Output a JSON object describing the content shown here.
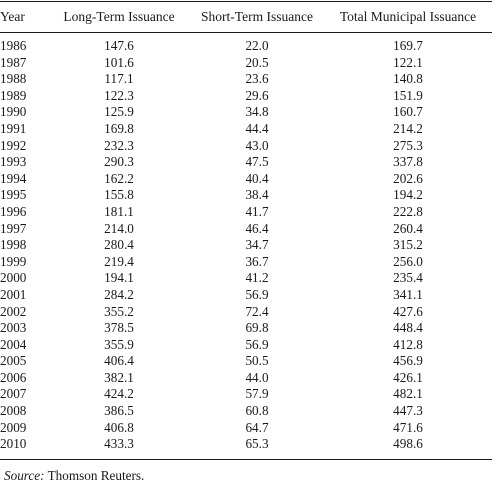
{
  "table": {
    "headers": {
      "year": "Year",
      "long_term": "Long-Term Issuance",
      "short_term": "Short-Term Issuance",
      "total": "Total Municipal Issuance"
    },
    "rows": [
      {
        "year": "1986",
        "long_term": "147.6",
        "short_term": "22.0",
        "total": "169.7"
      },
      {
        "year": "1987",
        "long_term": "101.6",
        "short_term": "20.5",
        "total": "122.1"
      },
      {
        "year": "1988",
        "long_term": "117.1",
        "short_term": "23.6",
        "total": "140.8"
      },
      {
        "year": "1989",
        "long_term": "122.3",
        "short_term": "29.6",
        "total": "151.9"
      },
      {
        "year": "1990",
        "long_term": "125.9",
        "short_term": "34.8",
        "total": "160.7"
      },
      {
        "year": "1991",
        "long_term": "169.8",
        "short_term": "44.4",
        "total": "214.2"
      },
      {
        "year": "1992",
        "long_term": "232.3",
        "short_term": "43.0",
        "total": "275.3"
      },
      {
        "year": "1993",
        "long_term": "290.3",
        "short_term": "47.5",
        "total": "337.8"
      },
      {
        "year": "1994",
        "long_term": "162.2",
        "short_term": "40.4",
        "total": "202.6"
      },
      {
        "year": "1995",
        "long_term": "155.8",
        "short_term": "38.4",
        "total": "194.2"
      },
      {
        "year": "1996",
        "long_term": "181.1",
        "short_term": "41.7",
        "total": "222.8"
      },
      {
        "year": "1997",
        "long_term": "214.0",
        "short_term": "46.4",
        "total": "260.4"
      },
      {
        "year": "1998",
        "long_term": "280.4",
        "short_term": "34.7",
        "total": "315.2"
      },
      {
        "year": "1999",
        "long_term": "219.4",
        "short_term": "36.7",
        "total": "256.0"
      },
      {
        "year": "2000",
        "long_term": "194.1",
        "short_term": "41.2",
        "total": "235.4"
      },
      {
        "year": "2001",
        "long_term": "284.2",
        "short_term": "56.9",
        "total": "341.1"
      },
      {
        "year": "2002",
        "long_term": "355.2",
        "short_term": "72.4",
        "total": "427.6"
      },
      {
        "year": "2003",
        "long_term": "378.5",
        "short_term": "69.8",
        "total": "448.4"
      },
      {
        "year": "2004",
        "long_term": "355.9",
        "short_term": "56.9",
        "total": "412.8"
      },
      {
        "year": "2005",
        "long_term": "406.4",
        "short_term": "50.5",
        "total": "456.9"
      },
      {
        "year": "2006",
        "long_term": "382.1",
        "short_term": "44.0",
        "total": "426.1"
      },
      {
        "year": "2007",
        "long_term": "424.2",
        "short_term": "57.9",
        "total": "482.1"
      },
      {
        "year": "2008",
        "long_term": "386.5",
        "short_term": "60.8",
        "total": "447.3"
      },
      {
        "year": "2009",
        "long_term": "406.8",
        "short_term": "64.7",
        "total": "471.6"
      },
      {
        "year": "2010",
        "long_term": "433.3",
        "short_term": "65.3",
        "total": "498.6"
      }
    ]
  },
  "source": {
    "label": "Source:",
    "text": "Thomson Reuters."
  }
}
